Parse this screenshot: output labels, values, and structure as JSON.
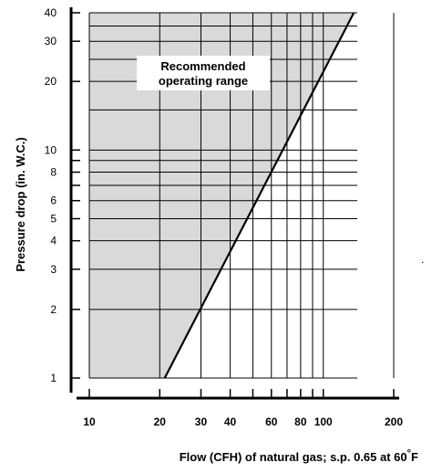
{
  "chart_data": {
    "type": "line",
    "title": "",
    "xlabel": "Flow (CFH) of natural gas; s.p. 0.65 at 60",
    "xlabel_degree": "°",
    "xlabel_unit": "F",
    "ylabel": "Pressure drop (in. W.C.)",
    "x_scale": "log",
    "y_scale": "log",
    "xlim": [
      10,
      200
    ],
    "ylim": [
      1,
      40
    ],
    "grid": true,
    "x_ticks": [
      10,
      20,
      30,
      40,
      60,
      80,
      100,
      200
    ],
    "y_ticks": [
      1,
      2,
      3,
      4,
      5,
      6,
      8,
      10,
      20,
      30,
      40
    ],
    "series": [
      {
        "x": [
          21,
          135
        ],
        "y": [
          1,
          40
        ]
      }
    ],
    "shaded_region": {
      "label_line1": "Recommended",
      "label_line2": "operating range",
      "fill_color": "#d9d9d9",
      "polygon": [
        [
          10,
          1
        ],
        [
          21,
          1
        ],
        [
          135,
          40
        ],
        [
          10,
          40
        ]
      ]
    },
    "colors": {
      "line": "#000000",
      "grid": "#000000",
      "text": "#000000",
      "background": "#ffffff"
    }
  }
}
